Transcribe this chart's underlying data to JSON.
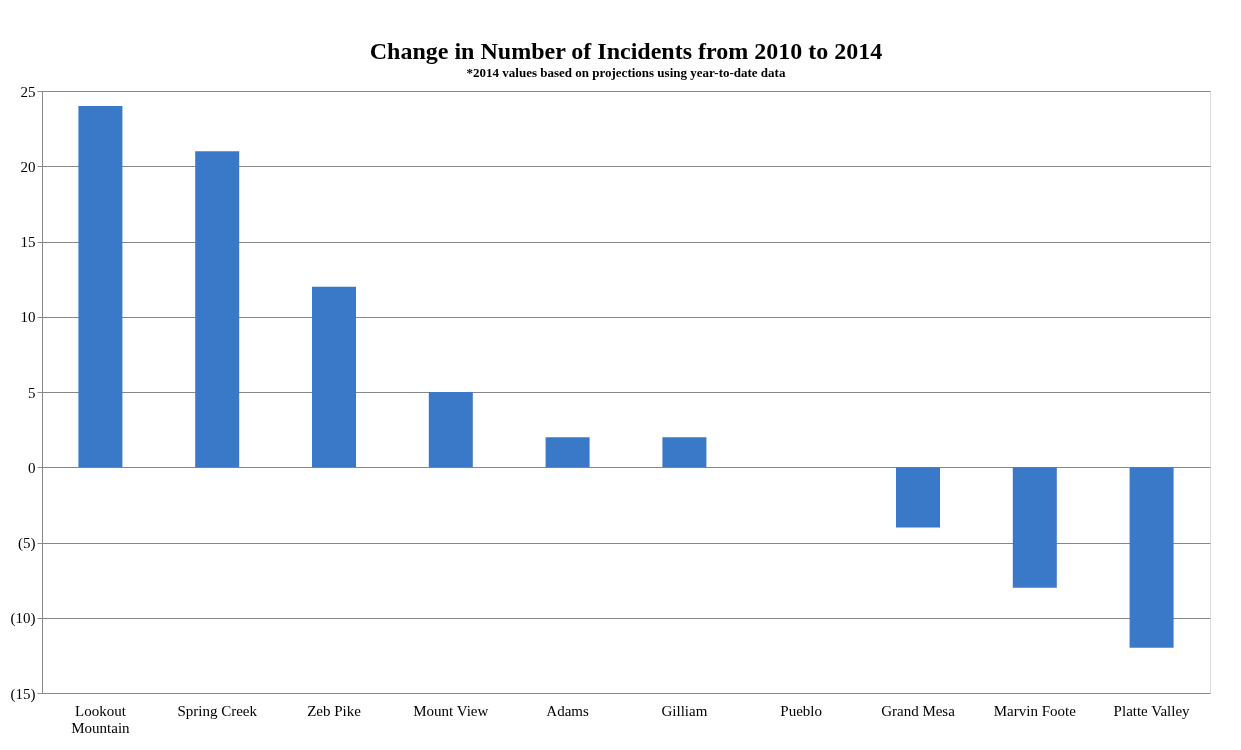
{
  "chart_data": {
    "type": "bar",
    "title": "Change in Number of Incidents from 2010 to 2014",
    "subtitle": "*2014 values based on projections using year-to-date data",
    "categories": [
      "Lookout Mountain",
      "Spring Creek",
      "Zeb Pike",
      "Mount View",
      "Adams",
      "Gilliam",
      "Pueblo",
      "Grand Mesa",
      "Marvin Foote",
      "Platte Valley"
    ],
    "values": [
      24,
      21,
      12,
      5,
      2,
      2,
      0,
      -4,
      -8,
      -12
    ],
    "color": "#3a78c8",
    "ylim": [
      -15,
      25
    ],
    "yticks": [
      {
        "value": -15,
        "label": "(15)"
      },
      {
        "value": -10,
        "label": "(10)"
      },
      {
        "value": -5,
        "label": "(5)"
      },
      0,
      5,
      10,
      15,
      20,
      25
    ],
    "grid": "y"
  }
}
